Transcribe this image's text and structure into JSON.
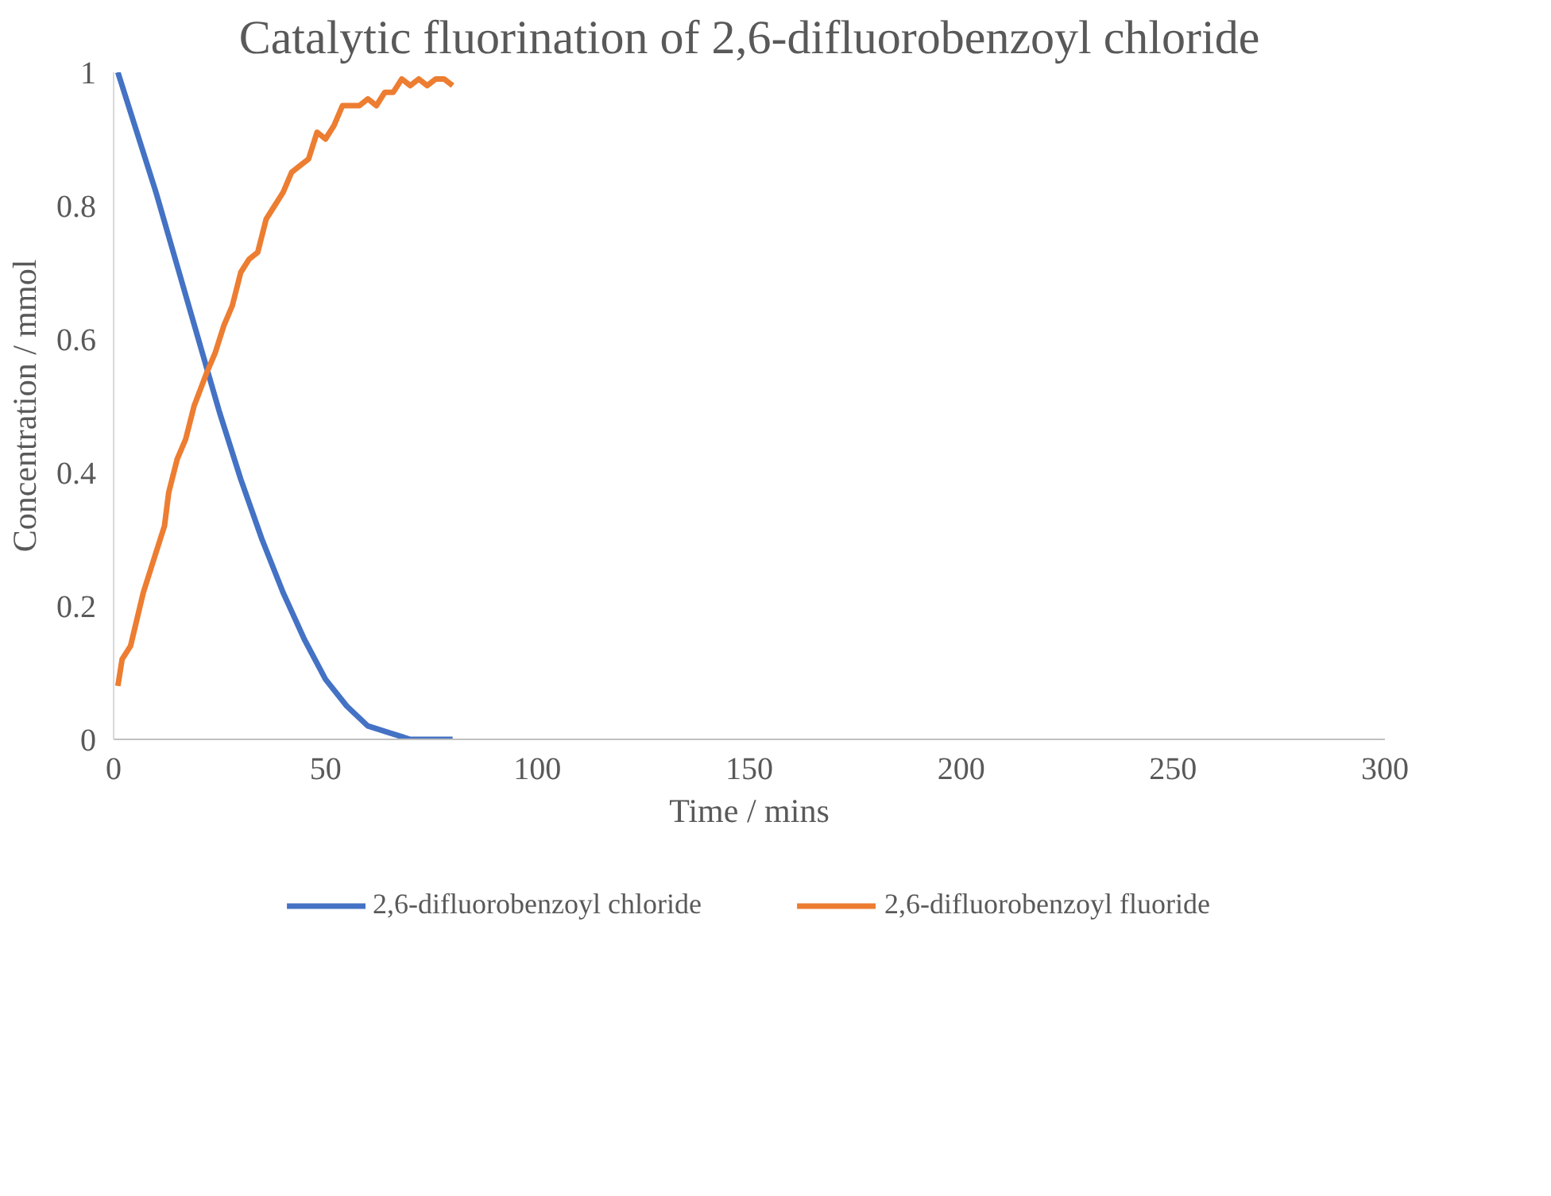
{
  "chart_data": {
    "type": "line",
    "title": "Catalytic fluorination of 2,6-difluorobenzoyl chloride",
    "xlabel": "Time / mins",
    "ylabel": "Concentration / mmol",
    "xlim": [
      0,
      300
    ],
    "xticks": [
      0,
      50,
      100,
      150,
      200,
      250,
      300
    ],
    "ylim": [
      0,
      1
    ],
    "yticks": [
      0,
      0.2,
      0.4,
      0.6,
      0.8,
      1
    ],
    "grid": false,
    "legend": "bottom",
    "marker": "none",
    "line_style": "solid",
    "series": [
      {
        "name": "2,6-difluorobenzoyl chloride",
        "color": "#4472c4",
        "x": [
          1,
          5,
          10,
          15,
          20,
          25,
          30,
          35,
          40,
          45,
          50,
          55,
          60,
          65,
          70,
          75,
          80
        ],
        "values": [
          1.0,
          0.92,
          0.82,
          0.71,
          0.6,
          0.49,
          0.39,
          0.3,
          0.22,
          0.15,
          0.09,
          0.05,
          0.02,
          0.01,
          0.0,
          0.0,
          0.0
        ]
      },
      {
        "name": "2,6-difluorobenzoyl fluoride",
        "color": "#ed7d31",
        "x": [
          1,
          2,
          4,
          7,
          10,
          12,
          13,
          15,
          17,
          19,
          22,
          24,
          26,
          28,
          30,
          32,
          34,
          36,
          38,
          40,
          42,
          44,
          46,
          48,
          50,
          52,
          54,
          56,
          58,
          60,
          62,
          64,
          66,
          68,
          70,
          72,
          74,
          76,
          78,
          80
        ],
        "values": [
          0.08,
          0.12,
          0.14,
          0.22,
          0.28,
          0.32,
          0.37,
          0.42,
          0.45,
          0.5,
          0.55,
          0.58,
          0.62,
          0.65,
          0.7,
          0.72,
          0.73,
          0.78,
          0.8,
          0.82,
          0.85,
          0.86,
          0.87,
          0.91,
          0.9,
          0.92,
          0.95,
          0.95,
          0.95,
          0.96,
          0.95,
          0.97,
          0.97,
          0.99,
          0.98,
          0.99,
          0.98,
          0.99,
          0.99,
          0.98
        ]
      }
    ]
  }
}
